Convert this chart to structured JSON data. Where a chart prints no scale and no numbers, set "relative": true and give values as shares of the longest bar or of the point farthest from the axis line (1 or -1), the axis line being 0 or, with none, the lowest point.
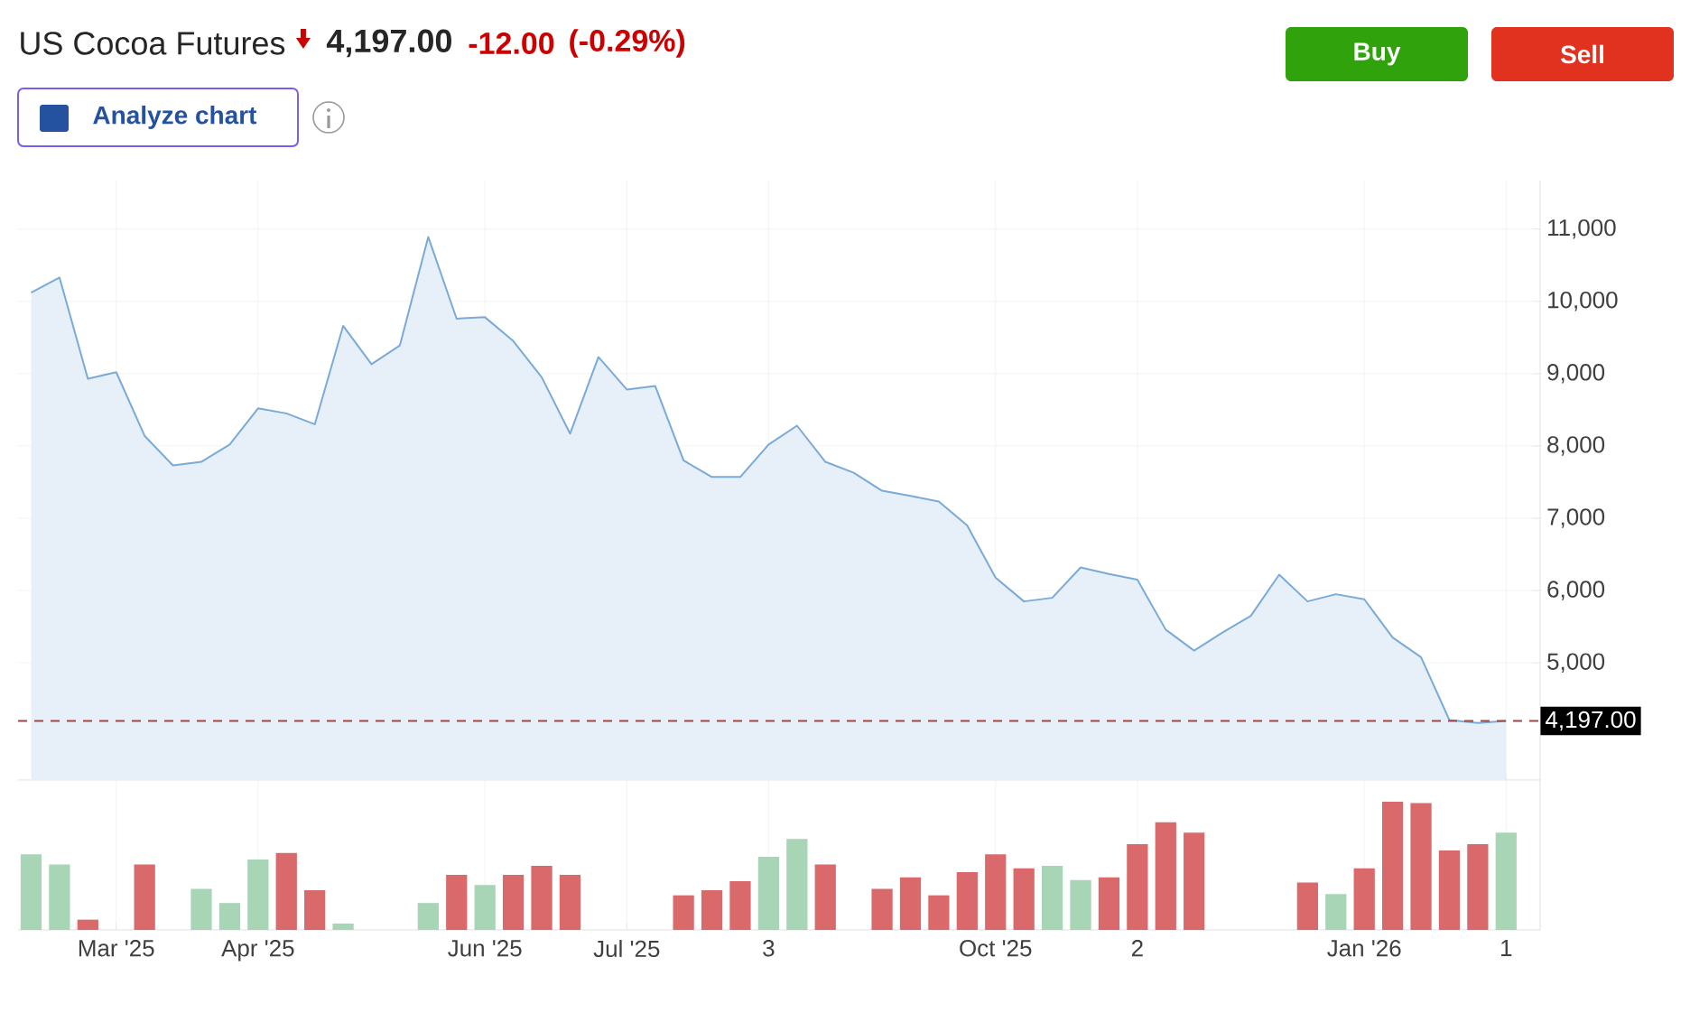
{
  "chart_data": [
    {
      "type": "area",
      "title": "US Cocoa Futures",
      "annotations": [
        "4,197.00",
        "-12.00",
        "(-0.29%)",
        "Analyze chart",
        "Buy",
        "Sell"
      ],
      "color": "#7aaad8",
      "grid": true,
      "tick_labels": "y",
      "ylim": [
        3380,
        11670
      ],
      "categories": [
        null,
        null,
        null,
        null,
        null,
        null,
        null,
        null,
        null,
        null,
        null,
        null,
        null,
        null,
        null,
        null,
        null,
        null,
        null,
        null,
        null,
        null,
        null,
        null,
        null,
        null,
        null,
        null,
        null,
        null,
        null,
        null,
        null,
        null,
        null,
        null,
        null,
        null,
        null,
        null,
        null,
        null,
        null,
        null,
        null,
        null,
        null,
        null,
        null,
        null,
        null,
        null,
        null
      ],
      "values": [
        10120,
        10330,
        8930,
        9020,
        8140,
        7730,
        7780,
        8020,
        8520,
        8450,
        8300,
        9660,
        9130,
        9390,
        10890,
        9760,
        9780,
        9450,
        8950,
        8170,
        9230,
        8780,
        8830,
        7800,
        7570,
        7570,
        8020,
        8280,
        7780,
        7630,
        7380,
        7310,
        7230,
        6900,
        6180,
        5850,
        5900,
        6320,
        6230,
        6150,
        5460,
        5170,
        5420,
        5650,
        6220,
        5850,
        5950,
        5880,
        5350,
        5080,
        4210,
        4170,
        4197
      ],
      "yticks": [
        {
          "value": 5000,
          "label": "5,000"
        },
        {
          "value": 6000,
          "label": "6,000"
        },
        {
          "value": 7000,
          "label": "7,000"
        },
        {
          "value": 8000,
          "label": "8,000"
        },
        {
          "value": 9000,
          "label": "9,000"
        },
        {
          "value": 10000,
          "label": "10,000"
        },
        {
          "value": 11000,
          "label": "11,000"
        }
      ],
      "ref_lines": [
        {
          "axis": "y",
          "value": 4197,
          "label": "4,197.00",
          "color": "#9b4848",
          "line_style": "dashed"
        }
      ]
    },
    {
      "type": "bar",
      "relative": true,
      "grid": "x",
      "tick_labels": "x",
      "categories": [
        null,
        null,
        null,
        "Mar '25",
        null,
        null,
        null,
        null,
        "Apr '25",
        null,
        null,
        null,
        null,
        null,
        null,
        null,
        "Jun '25",
        null,
        null,
        null,
        null,
        "Jul '25",
        null,
        null,
        null,
        null,
        "3",
        null,
        null,
        null,
        null,
        null,
        null,
        null,
        "Oct '25",
        null,
        null,
        null,
        null,
        "2",
        null,
        null,
        null,
        null,
        null,
        null,
        null,
        "Jan '26",
        null,
        null,
        null,
        null,
        "1"
      ],
      "values": [
        0.59,
        0.51,
        0.08,
        null,
        0.51,
        null,
        0.32,
        0.21,
        0.55,
        0.6,
        0.31,
        0.05,
        null,
        null,
        0.21,
        0.43,
        0.35,
        0.43,
        0.5,
        0.43,
        null,
        null,
        null,
        0.27,
        0.31,
        0.38,
        0.57,
        0.71,
        0.51,
        null,
        0.32,
        0.41,
        0.27,
        0.45,
        0.59,
        0.48,
        0.5,
        0.39,
        0.41,
        0.67,
        0.84,
        0.76,
        null,
        null,
        null,
        0.37,
        0.28,
        0.48,
        1,
        0.99,
        0.62,
        0.67,
        0.76
      ],
      "colors": [
        "#a8d5b5",
        "#a8d5b5",
        "#d9696a",
        null,
        "#d9696a",
        null,
        "#a8d5b5",
        "#a8d5b5",
        "#a8d5b5",
        "#d9696a",
        "#d9696a",
        "#a8d5b5",
        null,
        null,
        "#a8d5b5",
        "#d9696a",
        "#a8d5b5",
        "#d9696a",
        "#d9696a",
        "#d9696a",
        null,
        null,
        null,
        "#d9696a",
        "#d9696a",
        "#d9696a",
        "#a8d5b5",
        "#a8d5b5",
        "#d9696a",
        null,
        "#d9696a",
        "#d9696a",
        "#d9696a",
        "#d9696a",
        "#d9696a",
        "#d9696a",
        "#a8d5b5",
        "#a8d5b5",
        "#d9696a",
        "#d9696a",
        "#d9696a",
        "#d9696a",
        null,
        null,
        null,
        "#d9696a",
        "#a8d5b5",
        "#d9696a",
        "#d9696a",
        "#d9696a",
        "#d9696a",
        "#d9696a",
        "#a8d5b5"
      ]
    }
  ]
}
